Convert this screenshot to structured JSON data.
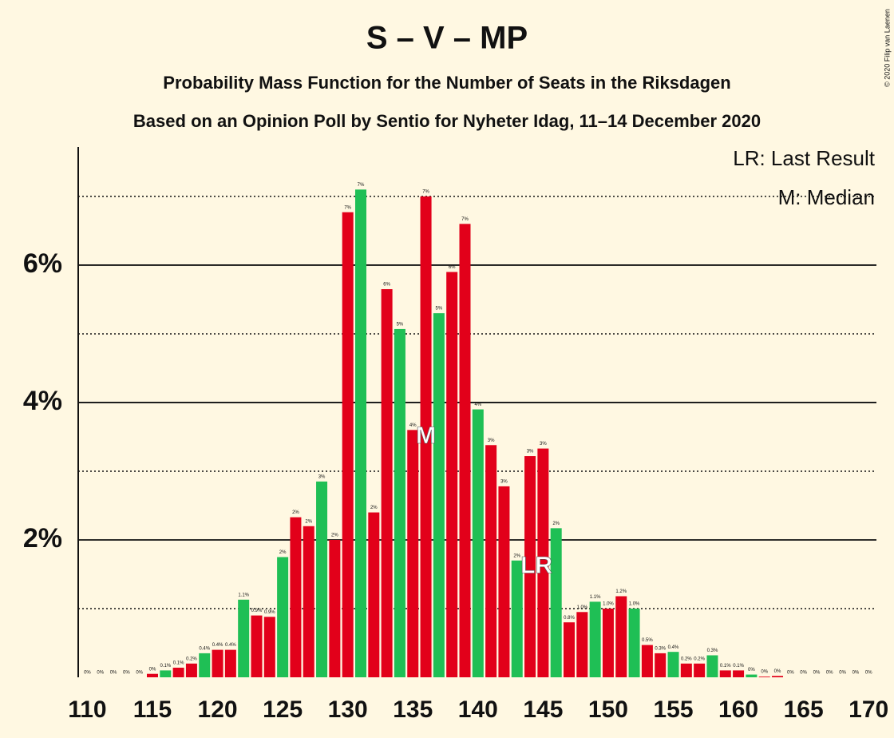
{
  "chart_data": {
    "type": "bar",
    "title": "S – V – MP",
    "subtitle": "Probability Mass Function for the Number of Seats in the Riksdagen",
    "subtitle2": "Based on an Opinion Poll by Sentio for Nyheter Idag, 11–14 December 2020",
    "copyright": "© 2020 Filip van Laenen",
    "legend": [
      "LR: Last Result",
      "M: Median"
    ],
    "median_marker": {
      "label": "M",
      "x": 136
    },
    "last_result_marker": {
      "label": "LR",
      "x": 144
    },
    "x": [
      110,
      111,
      112,
      113,
      114,
      115,
      116,
      117,
      118,
      119,
      120,
      121,
      122,
      123,
      124,
      125,
      126,
      127,
      128,
      129,
      130,
      131,
      132,
      133,
      134,
      135,
      136,
      137,
      138,
      139,
      140,
      141,
      142,
      143,
      144,
      145,
      146,
      147,
      148,
      149,
      150,
      151,
      152,
      153,
      154,
      155,
      156,
      157,
      158,
      159,
      160,
      161,
      162,
      163,
      164,
      165,
      166,
      167,
      168,
      169,
      170
    ],
    "values": [
      0,
      0,
      0,
      0,
      0,
      0.05,
      0.1,
      0.14,
      0.2,
      0.35,
      0.4,
      0.4,
      1.13,
      0.9,
      0.88,
      1.75,
      2.33,
      2.2,
      2.85,
      2.0,
      6.77,
      7.1,
      2.4,
      5.65,
      5.07,
      3.6,
      7.0,
      5.3,
      5.9,
      6.6,
      3.9,
      3.38,
      2.78,
      1.7,
      3.22,
      3.33,
      2.17,
      0.8,
      0.95,
      1.1,
      1.0,
      1.18,
      1.0,
      0.47,
      0.35,
      0.37,
      0.2,
      0.2,
      0.32,
      0.1,
      0.1,
      0.04,
      0.01,
      0.02,
      0,
      0,
      0,
      0,
      0,
      0,
      0
    ],
    "value_labels": [
      "0%",
      "0%",
      "0%",
      "0%",
      "0%",
      "0%",
      "0.1%",
      "0.1%",
      "0.2%",
      "0.4%",
      "0.4%",
      "0.4%",
      "1.1%",
      "0.9%",
      "0.9%",
      "2%",
      "2%",
      "2%",
      "3%",
      "2%",
      "7%",
      "7%",
      "2%",
      "6%",
      "5%",
      "4%",
      "7%",
      "5%",
      "6%",
      "7%",
      "4%",
      "3%",
      "3%",
      "2%",
      "3%",
      "3%",
      "2%",
      "0.8%",
      "1.0%",
      "1.1%",
      "1.0%",
      "1.2%",
      "1.0%",
      "0.5%",
      "0.3%",
      "0.4%",
      "0.2%",
      "0.2%",
      "0.3%",
      "0.1%",
      "0.1%",
      "0%",
      "0%",
      "0%",
      "0%",
      "0%",
      "0%",
      "0%",
      "0%",
      "0%",
      "0%"
    ],
    "colors": [
      "#1fbf55",
      "#e2001a",
      "#e2001a",
      "#1fbf55",
      "#e2001a",
      "#e2001a",
      "#1fbf55",
      "#e2001a",
      "#e2001a",
      "#1fbf55",
      "#e2001a",
      "#e2001a",
      "#1fbf55",
      "#e2001a",
      "#e2001a",
      "#1fbf55",
      "#e2001a",
      "#e2001a",
      "#1fbf55",
      "#e2001a",
      "#e2001a",
      "#1fbf55",
      "#e2001a",
      "#e2001a",
      "#1fbf55",
      "#e2001a",
      "#e2001a",
      "#1fbf55",
      "#e2001a",
      "#e2001a",
      "#1fbf55",
      "#e2001a",
      "#e2001a",
      "#1fbf55",
      "#e2001a",
      "#e2001a",
      "#1fbf55",
      "#e2001a",
      "#e2001a",
      "#1fbf55",
      "#e2001a",
      "#e2001a",
      "#1fbf55",
      "#e2001a",
      "#e2001a",
      "#1fbf55",
      "#e2001a",
      "#e2001a",
      "#1fbf55",
      "#e2001a",
      "#e2001a",
      "#1fbf55",
      "#e2001a",
      "#e2001a",
      "#1fbf55",
      "#e2001a",
      "#e2001a",
      "#1fbf55",
      "#e2001a",
      "#e2001a",
      "#1fbf55"
    ],
    "xlim": [
      109.3,
      170.6
    ],
    "xticks": [
      110,
      115,
      120,
      125,
      130,
      135,
      140,
      145,
      150,
      155,
      160,
      165,
      170
    ],
    "ylim": [
      0,
      7.72
    ],
    "yticks": [
      {
        "value": 2,
        "label": "2%"
      },
      {
        "value": 4,
        "label": "4%"
      },
      {
        "value": 6,
        "label": "6%"
      }
    ],
    "minor_yticks": [
      1,
      3,
      5,
      7
    ],
    "grid": true
  }
}
